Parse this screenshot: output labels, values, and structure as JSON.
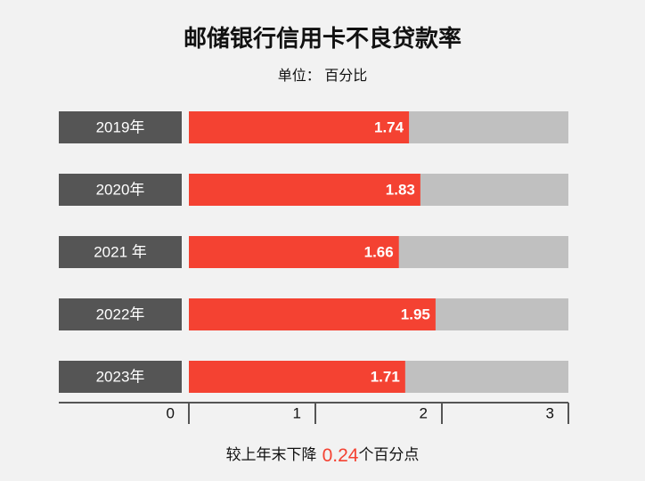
{
  "chart_data": {
    "type": "bar",
    "orientation": "horizontal",
    "title": "邮储银行信用卡不良贷款率",
    "subtitle": "单位： 百分比",
    "categories": [
      "2019年",
      "2020年",
      "2021 年",
      "2022年",
      "2023年"
    ],
    "values": [
      1.74,
      1.83,
      1.66,
      1.95,
      1.71
    ],
    "color": "#f44232",
    "track_color": "#c0c0c0",
    "label_color": "#555555",
    "xlim": [
      0,
      3
    ],
    "xticks": [
      0,
      1,
      2,
      3
    ],
    "footnote": {
      "before": "较上年末下降",
      "highlight": "0.24",
      "after": "个百分点",
      "highlight_color": "#f44232"
    }
  }
}
